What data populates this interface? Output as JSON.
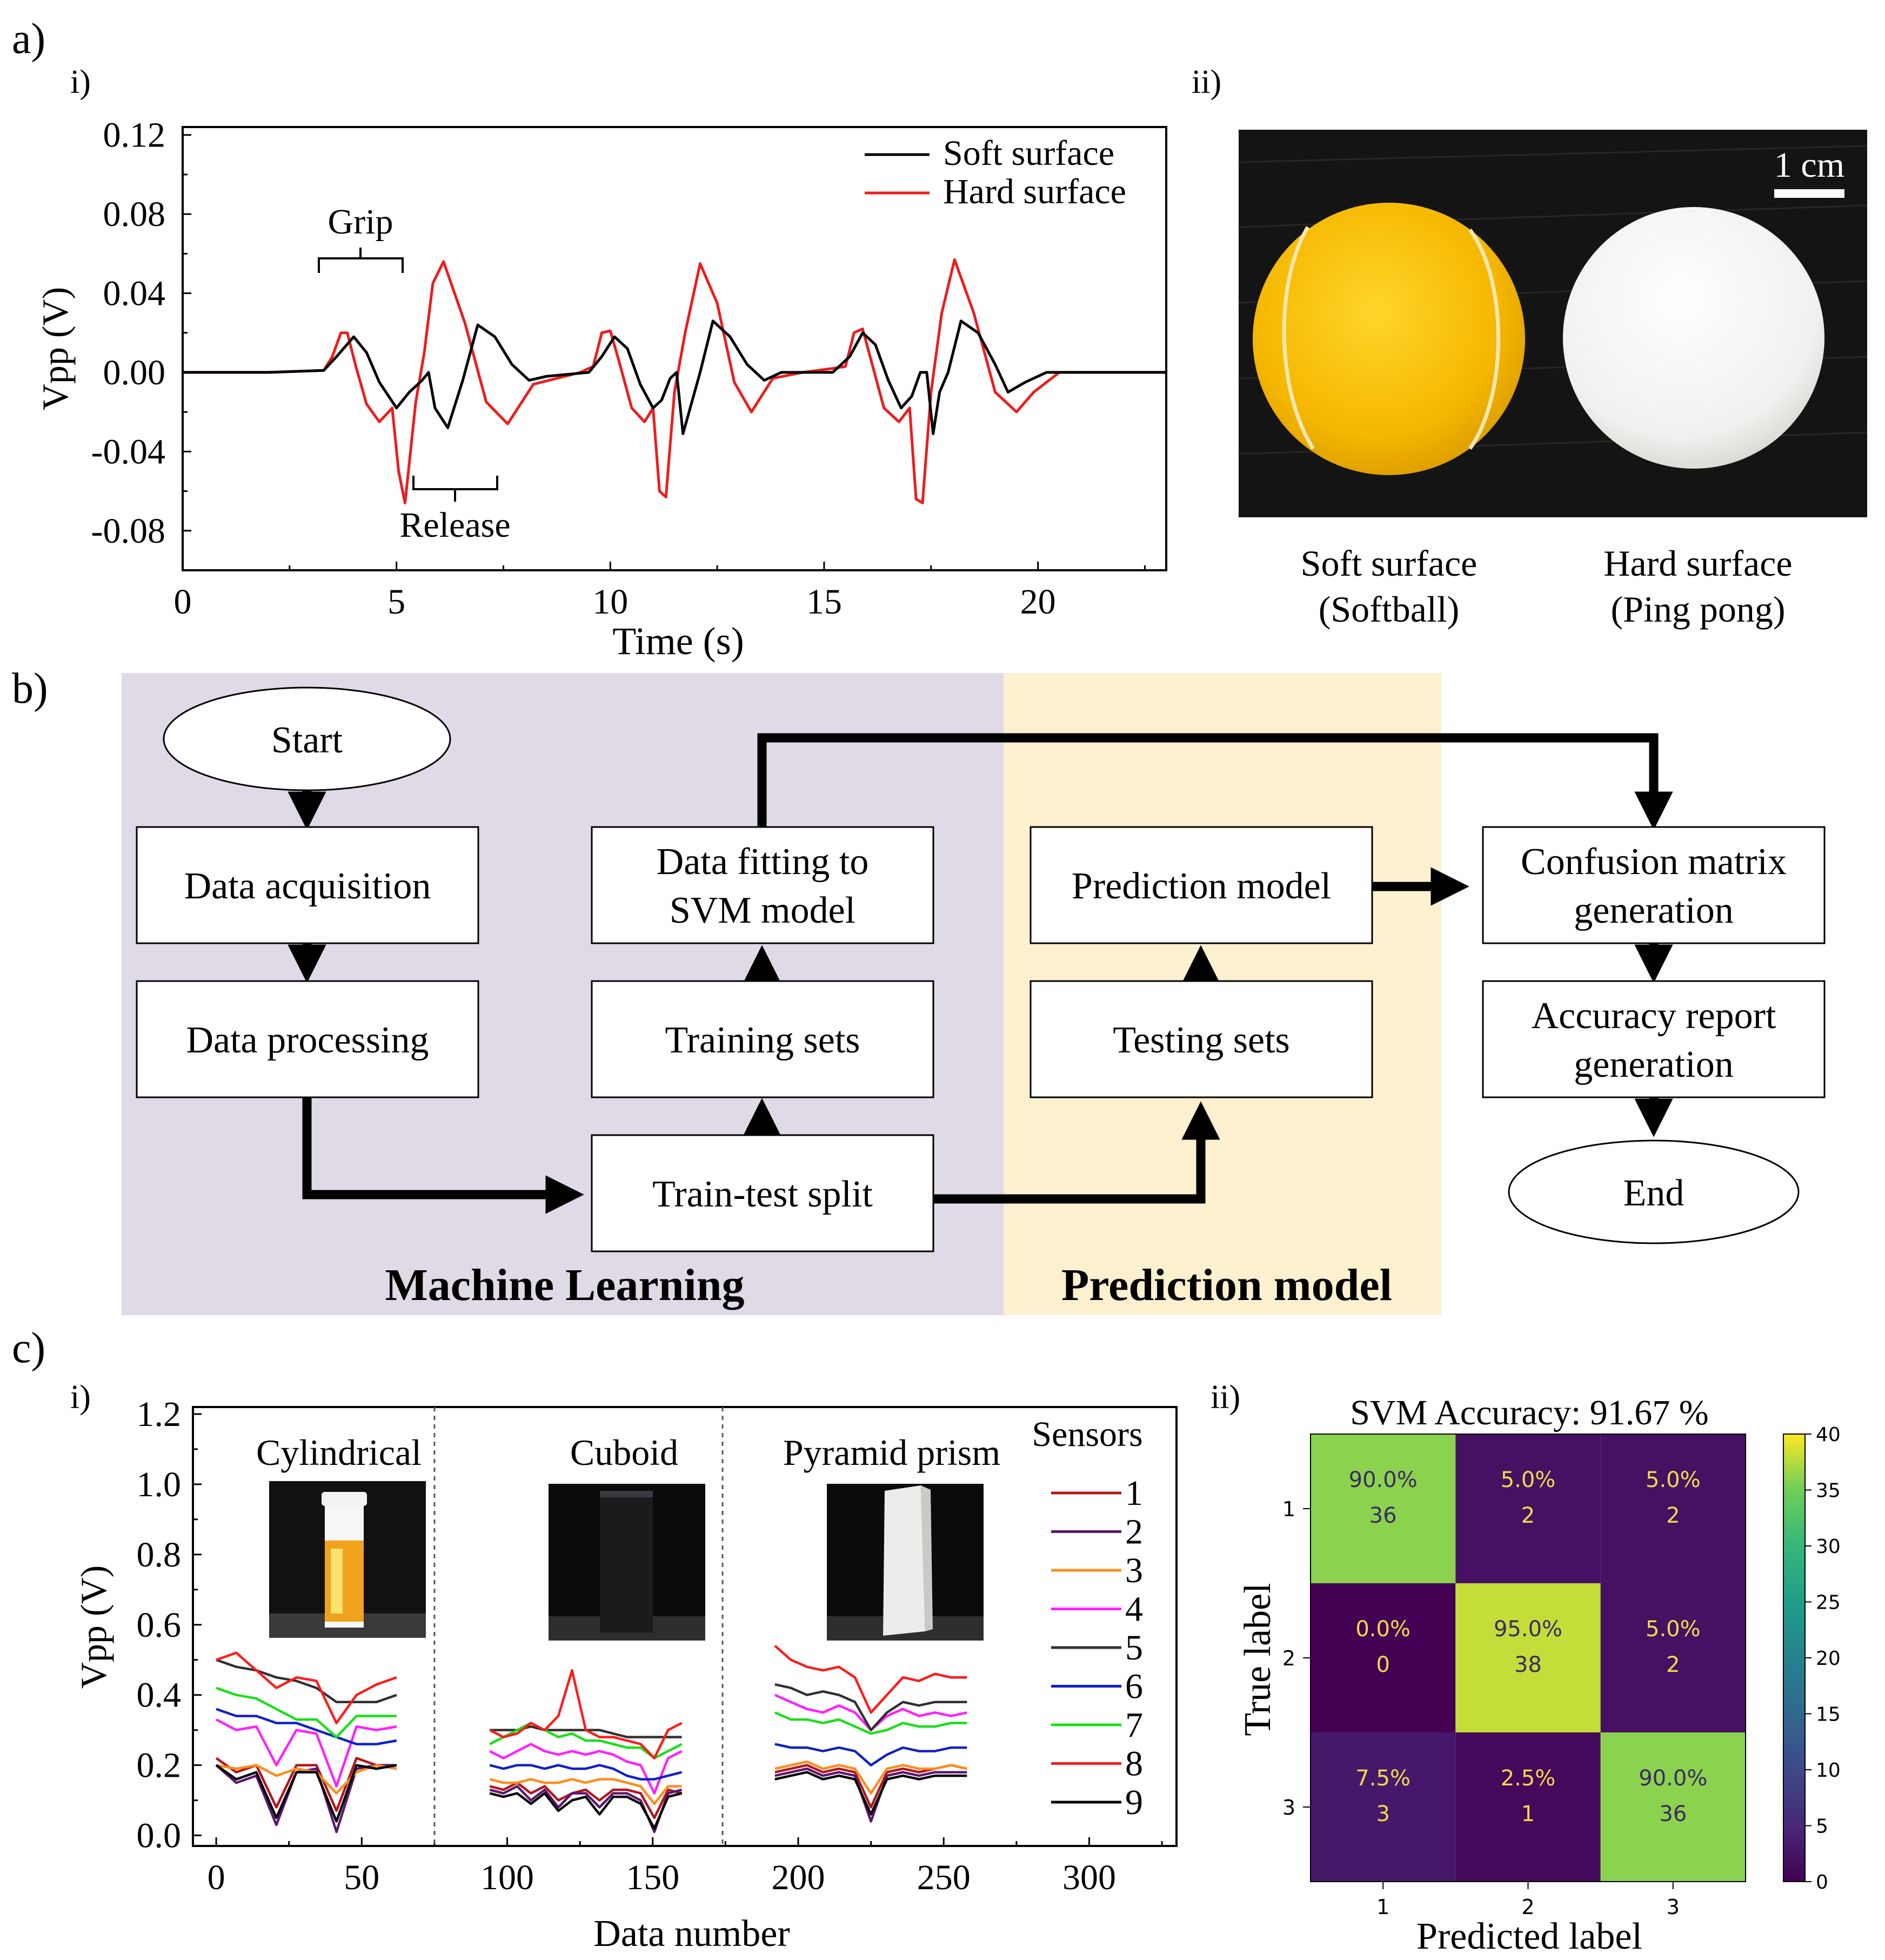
{
  "panels": {
    "a": "a)",
    "a_i": "i)",
    "a_ii": "ii)",
    "b": "b)",
    "c": "c)",
    "c_i": "i)",
    "c_ii": "ii)"
  },
  "colors": {
    "soft": "#000000",
    "hard": "#ee1c1c",
    "ml_region": "#e0d9e6",
    "pred_region": "#fdf0cf",
    "sensor_colors": [
      "#b3141c",
      "#5c1670",
      "#ff8c1a",
      "#ff1fff",
      "#303030",
      "#1020c8",
      "#18e018",
      "#ff1a1a",
      "#000000"
    ]
  },
  "photo": {
    "scale_label": "1 cm",
    "soft_caption_line1": "Soft surface",
    "soft_caption_line2": "(Softball)",
    "hard_caption_line1": "Hard surface",
    "hard_caption_line2": "(Ping pong)"
  },
  "flowchart": {
    "start": "Start",
    "data_acquisition": "Data acquisition",
    "data_processing": "Data processing",
    "train_test_split": "Train-test split",
    "training_sets": "Training sets",
    "fitting_line1": "Data fitting to",
    "fitting_line2": "SVM model",
    "testing_sets": "Testing sets",
    "prediction_model_box": "Prediction model",
    "confusion_line1": "Confusion matrix",
    "confusion_line2": "generation",
    "accuracy_line1": "Accuracy report",
    "accuracy_line2": "generation",
    "end": "End",
    "ml_label": "Machine Learning",
    "pred_label": "Prediction model"
  },
  "chart_data": [
    {
      "id": "a-i",
      "type": "line",
      "xlabel": "Time (s)",
      "ylabel": "Vpp (V)",
      "xlim": [
        0,
        23
      ],
      "ylim": [
        -0.1,
        0.124
      ],
      "xticks": [
        0,
        5,
        10,
        15,
        20
      ],
      "xtick_labels": [
        "0",
        "5",
        "10",
        "15",
        "20"
      ],
      "yticks": [
        -0.08,
        -0.04,
        0.0,
        0.04,
        0.08,
        0.12
      ],
      "ytick_labels": [
        "-0.08",
        "-0.04",
        "0.00",
        "0.04",
        "0.08",
        "0.12"
      ],
      "legend": [
        "Soft surface",
        "Hard surface"
      ],
      "annotations": [
        "Grip",
        "Release"
      ],
      "series": [
        {
          "name": "Soft surface",
          "x": [
            0,
            2,
            3.3,
            3.6,
            4.0,
            4.3,
            4.6,
            5.0,
            5.3,
            5.6,
            5.75,
            5.9,
            6.2,
            6.55,
            6.9,
            7.3,
            7.7,
            8.1,
            8.5,
            9.5,
            9.8,
            10.1,
            10.4,
            10.7,
            11.0,
            11.2,
            11.4,
            11.55,
            11.7,
            12.1,
            12.4,
            12.8,
            13.2,
            13.6,
            14.0,
            14.4,
            15.2,
            15.6,
            15.9,
            16.2,
            16.5,
            16.8,
            17.05,
            17.25,
            17.4,
            17.55,
            17.7,
            17.9,
            18.2,
            18.6,
            19.0,
            19.3,
            19.7,
            20.2,
            21,
            22,
            23
          ],
          "y": [
            0,
            0,
            0.001,
            0.008,
            0.018,
            0.01,
            -0.005,
            -0.018,
            -0.01,
            -0.004,
            0.0,
            -0.018,
            -0.028,
            -0.004,
            0.024,
            0.018,
            0.004,
            -0.004,
            -0.002,
            0.0,
            0.008,
            0.018,
            0.012,
            -0.006,
            -0.018,
            -0.014,
            -0.003,
            0.0,
            -0.031,
            0.0,
            0.026,
            0.018,
            0.004,
            -0.004,
            0.0,
            0.0,
            0.0,
            0.008,
            0.02,
            0.014,
            -0.004,
            -0.018,
            -0.012,
            0.0,
            0.0,
            -0.031,
            -0.01,
            0.0,
            0.026,
            0.02,
            0.004,
            -0.01,
            -0.005,
            0.0,
            0.0,
            0.0,
            0.0
          ]
        },
        {
          "name": "Hard surface",
          "x": [
            0,
            2,
            3.3,
            3.5,
            3.7,
            3.85,
            4.05,
            4.3,
            4.6,
            4.9,
            5.05,
            5.2,
            5.45,
            5.65,
            5.85,
            6.1,
            6.6,
            7.1,
            7.6,
            8.2,
            9.3,
            9.6,
            9.8,
            10.0,
            10.2,
            10.5,
            10.8,
            11.0,
            11.15,
            11.3,
            11.5,
            11.75,
            12.1,
            12.5,
            12.9,
            13.3,
            13.8,
            14.5,
            15.2,
            15.5,
            15.7,
            15.9,
            16.1,
            16.4,
            16.75,
            17.0,
            17.15,
            17.3,
            17.5,
            17.75,
            18.05,
            18.5,
            19.0,
            19.5,
            19.9,
            20.5,
            21,
            22,
            23
          ],
          "y": [
            0,
            0,
            0.001,
            0.008,
            0.02,
            0.02,
            0.003,
            -0.016,
            -0.025,
            -0.018,
            -0.05,
            -0.066,
            -0.015,
            0.01,
            0.045,
            0.056,
            0.025,
            -0.015,
            -0.026,
            -0.006,
            0.0,
            0.003,
            0.02,
            0.021,
            0.006,
            -0.018,
            -0.025,
            -0.018,
            -0.06,
            -0.063,
            -0.01,
            0.02,
            0.055,
            0.035,
            -0.005,
            -0.02,
            -0.003,
            0.0,
            0.002,
            0.003,
            0.02,
            0.022,
            0.006,
            -0.018,
            -0.025,
            -0.018,
            -0.064,
            -0.066,
            -0.01,
            0.03,
            0.057,
            0.03,
            -0.01,
            -0.02,
            -0.01,
            0.0,
            0.0,
            0.0,
            0.0
          ]
        }
      ]
    },
    {
      "id": "c-i",
      "type": "line",
      "xlabel": "Data number",
      "ylabel": "Vpp (V)",
      "xlim": [
        -8,
        330
      ],
      "ylim": [
        -0.03,
        1.22
      ],
      "xticks": [
        0,
        50,
        100,
        150,
        200,
        250,
        300
      ],
      "xtick_labels": [
        "0",
        "50",
        "100",
        "150",
        "200",
        "250",
        "300"
      ],
      "yticks": [
        0.0,
        0.2,
        0.4,
        0.6,
        0.8,
        1.0,
        1.2
      ],
      "ytick_labels": [
        "0.0",
        "0.2",
        "0.4",
        "0.6",
        "0.8",
        "1.0",
        "1.2"
      ],
      "separators": [
        75,
        174
      ],
      "group_labels": [
        "Cylindrical",
        "Cuboid",
        "Pyramid prism"
      ],
      "legend_title": "Sensors",
      "legend": [
        "1",
        "2",
        "3",
        "4",
        "5",
        "6",
        "7",
        "8",
        "9"
      ],
      "segments": [
        [
          0,
          62
        ],
        [
          94,
          160
        ],
        [
          192,
          258
        ]
      ],
      "series": [
        {
          "name": "1",
          "values": [
            [
              0.22,
              0.18,
              0.2,
              0.08,
              0.2,
              0.2,
              0.07,
              0.22,
              0.2,
              0.19
            ],
            [
              0.14,
              0.13,
              0.15,
              0.12,
              0.14,
              0.1,
              0.12,
              0.13,
              0.1,
              0.13,
              0.13,
              0.12,
              0.05,
              0.13,
              0.12
            ],
            [
              0.18,
              0.19,
              0.2,
              0.18,
              0.19,
              0.18,
              0.08,
              0.18,
              0.19,
              0.18,
              0.19,
              0.2,
              0.19
            ]
          ]
        },
        {
          "name": "2",
          "values": [
            [
              0.2,
              0.15,
              0.17,
              0.03,
              0.18,
              0.19,
              0.01,
              0.19,
              0.2,
              0.2
            ],
            [
              0.13,
              0.12,
              0.14,
              0.1,
              0.13,
              0.08,
              0.12,
              0.12,
              0.08,
              0.12,
              0.12,
              0.1,
              0.01,
              0.12,
              0.13
            ],
            [
              0.17,
              0.18,
              0.19,
              0.17,
              0.18,
              0.17,
              0.04,
              0.17,
              0.18,
              0.17,
              0.18,
              0.18,
              0.18
            ]
          ]
        },
        {
          "name": "3",
          "values": [
            [
              0.2,
              0.19,
              0.2,
              0.17,
              0.19,
              0.18,
              0.12,
              0.18,
              0.2,
              0.19
            ],
            [
              0.16,
              0.15,
              0.15,
              0.16,
              0.15,
              0.15,
              0.16,
              0.15,
              0.16,
              0.16,
              0.15,
              0.14,
              0.09,
              0.14,
              0.14
            ],
            [
              0.19,
              0.2,
              0.21,
              0.19,
              0.2,
              0.19,
              0.12,
              0.19,
              0.2,
              0.19,
              0.19,
              0.2,
              0.19
            ]
          ]
        },
        {
          "name": "4",
          "values": [
            [
              0.33,
              0.3,
              0.31,
              0.2,
              0.3,
              0.29,
              0.14,
              0.31,
              0.3,
              0.31
            ],
            [
              0.24,
              0.22,
              0.24,
              0.26,
              0.24,
              0.23,
              0.24,
              0.23,
              0.24,
              0.23,
              0.21,
              0.2,
              0.12,
              0.22,
              0.24
            ],
            [
              0.4,
              0.38,
              0.36,
              0.35,
              0.37,
              0.35,
              0.3,
              0.34,
              0.36,
              0.34,
              0.35,
              0.34,
              0.35
            ]
          ]
        },
        {
          "name": "5",
          "values": [
            [
              0.5,
              0.48,
              0.47,
              0.45,
              0.44,
              0.42,
              0.38,
              0.38,
              0.38,
              0.4
            ],
            [
              0.3,
              0.3,
              0.3,
              0.31,
              0.3,
              0.3,
              0.3,
              0.3,
              0.3,
              0.29,
              0.28,
              0.28,
              0.28,
              0.28,
              0.28
            ],
            [
              0.43,
              0.42,
              0.4,
              0.41,
              0.4,
              0.38,
              0.3,
              0.35,
              0.38,
              0.37,
              0.38,
              0.38,
              0.38
            ]
          ]
        },
        {
          "name": "6",
          "values": [
            [
              0.36,
              0.34,
              0.34,
              0.32,
              0.32,
              0.3,
              0.28,
              0.26,
              0.26,
              0.27
            ],
            [
              0.2,
              0.19,
              0.2,
              0.2,
              0.19,
              0.2,
              0.19,
              0.19,
              0.2,
              0.19,
              0.17,
              0.16,
              0.16,
              0.17,
              0.18
            ],
            [
              0.26,
              0.25,
              0.25,
              0.24,
              0.25,
              0.24,
              0.2,
              0.23,
              0.25,
              0.24,
              0.24,
              0.25,
              0.25
            ]
          ]
        },
        {
          "name": "7",
          "values": [
            [
              0.42,
              0.4,
              0.39,
              0.36,
              0.33,
              0.33,
              0.28,
              0.34,
              0.34,
              0.34
            ],
            [
              0.26,
              0.28,
              0.3,
              0.32,
              0.3,
              0.28,
              0.29,
              0.27,
              0.27,
              0.26,
              0.25,
              0.25,
              0.22,
              0.24,
              0.26
            ],
            [
              0.35,
              0.33,
              0.33,
              0.32,
              0.33,
              0.31,
              0.29,
              0.3,
              0.32,
              0.31,
              0.31,
              0.32,
              0.32
            ]
          ]
        },
        {
          "name": "8",
          "values": [
            [
              0.5,
              0.52,
              0.47,
              0.42,
              0.45,
              0.44,
              0.32,
              0.4,
              0.43,
              0.45
            ],
            [
              0.3,
              0.28,
              0.29,
              0.32,
              0.3,
              0.34,
              0.47,
              0.3,
              0.28,
              0.28,
              0.27,
              0.26,
              0.22,
              0.3,
              0.32
            ],
            [
              0.54,
              0.5,
              0.48,
              0.47,
              0.48,
              0.45,
              0.35,
              0.4,
              0.45,
              0.44,
              0.46,
              0.45,
              0.45
            ]
          ]
        },
        {
          "name": "9",
          "values": [
            [
              0.2,
              0.16,
              0.18,
              0.05,
              0.18,
              0.18,
              0.04,
              0.2,
              0.19,
              0.2
            ],
            [
              0.12,
              0.11,
              0.12,
              0.09,
              0.12,
              0.07,
              0.1,
              0.11,
              0.06,
              0.11,
              0.11,
              0.09,
              0.02,
              0.11,
              0.12
            ],
            [
              0.16,
              0.17,
              0.18,
              0.16,
              0.17,
              0.16,
              0.06,
              0.16,
              0.17,
              0.16,
              0.17,
              0.17,
              0.17
            ]
          ]
        }
      ]
    },
    {
      "id": "c-ii",
      "type": "heatmap",
      "title": "SVM Accuracy: 91.67 %",
      "xlabel": "Predicted label",
      "ylabel": "True label",
      "x_labels": [
        "1",
        "2",
        "3"
      ],
      "y_labels": [
        "1",
        "2",
        "3"
      ],
      "counts": [
        [
          36,
          2,
          2
        ],
        [
          0,
          38,
          2
        ],
        [
          3,
          1,
          36
        ]
      ],
      "percents": [
        [
          "90.0%",
          "5.0%",
          "5.0%"
        ],
        [
          "0.0%",
          "95.0%",
          "5.0%"
        ],
        [
          "7.5%",
          "2.5%",
          "90.0%"
        ]
      ],
      "vmin": 0,
      "vmax": 40,
      "colorbar_ticks": [
        "0",
        "5",
        "10",
        "15",
        "20",
        "25",
        "30",
        "35",
        "40"
      ]
    }
  ]
}
